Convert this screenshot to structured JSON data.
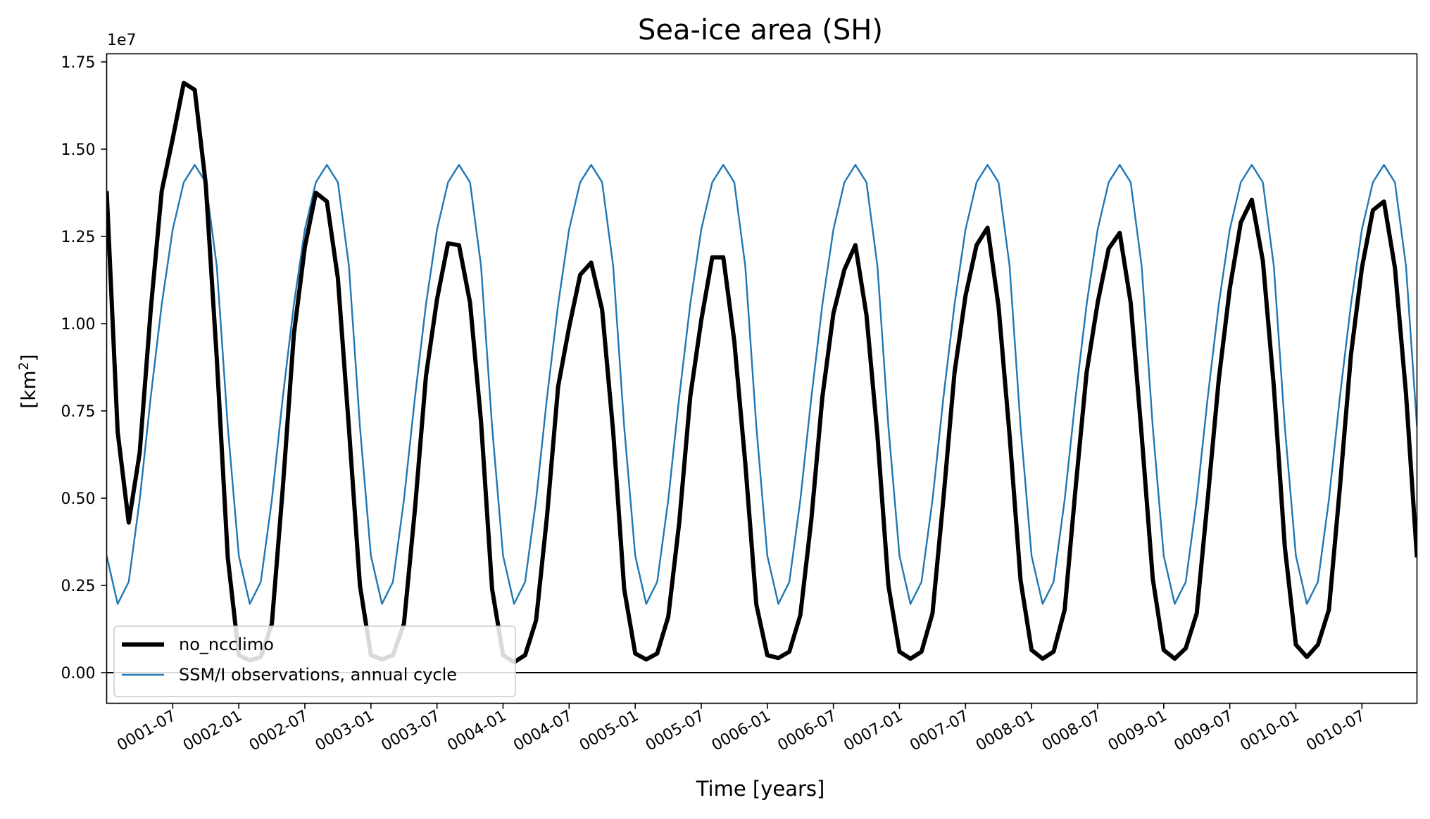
{
  "chart_data": {
    "type": "line",
    "title": "Sea-ice area (SH)",
    "xlabel": "Time [years]",
    "ylabel_main": "[km",
    "ylabel_sup": "2",
    "ylabel_end": "]",
    "y_offset_label": "1e7",
    "ylim": [
      -800000,
      17800000
    ],
    "xlim": [
      0,
      119
    ],
    "x_unit": "month index (0 = 0001-01)",
    "yticks": [
      0,
      2500000,
      5000000,
      7500000,
      10000000,
      12500000,
      15000000,
      17500000
    ],
    "ytick_labels": [
      "0.00",
      "0.25",
      "0.50",
      "0.75",
      "1.00",
      "1.25",
      "1.50",
      "1.75"
    ],
    "xticks": [
      6,
      12,
      18,
      24,
      30,
      36,
      42,
      48,
      54,
      60,
      66,
      72,
      78,
      84,
      90,
      96,
      102,
      108,
      114
    ],
    "xtick_labels": [
      "0001-07",
      "0002-01",
      "0002-07",
      "0003-01",
      "0003-07",
      "0004-01",
      "0004-07",
      "0005-01",
      "0005-07",
      "0006-01",
      "0006-07",
      "0007-01",
      "0007-07",
      "0008-01",
      "0008-07",
      "0009-01",
      "0009-07",
      "0010-01",
      "0010-07"
    ],
    "zero_line": true,
    "grid": false,
    "legend_position": "lower-left",
    "series": [
      {
        "name": "no_ncclimo",
        "color": "#000000",
        "values": [
          13800000,
          6900000,
          4300000,
          6300000,
          10400000,
          13800000,
          15300000,
          16900000,
          16700000,
          14000000,
          9000000,
          3300000,
          500000,
          350000,
          450000,
          1400000,
          5300000,
          9700000,
          12200000,
          13750000,
          13500000,
          11300000,
          7000000,
          2500000,
          500000,
          380000,
          500000,
          1400000,
          4700000,
          8500000,
          10700000,
          12300000,
          12250000,
          10600000,
          7200000,
          2400000,
          500000,
          300000,
          500000,
          1500000,
          4500000,
          8200000,
          9900000,
          11400000,
          11750000,
          10400000,
          6900000,
          2400000,
          550000,
          380000,
          550000,
          1600000,
          4300000,
          7900000,
          10100000,
          11900000,
          11900000,
          9500000,
          6000000,
          1950000,
          500000,
          420000,
          600000,
          1650000,
          4400000,
          7900000,
          10300000,
          11550000,
          12250000,
          10250000,
          6800000,
          2500000,
          600000,
          400000,
          600000,
          1700000,
          5000000,
          8600000,
          10800000,
          12250000,
          12750000,
          10500000,
          6800000,
          2650000,
          650000,
          400000,
          600000,
          1800000,
          5300000,
          8600000,
          10600000,
          12150000,
          12600000,
          10600000,
          6800000,
          2700000,
          650000,
          400000,
          700000,
          1700000,
          5000000,
          8400000,
          11000000,
          12900000,
          13550000,
          11800000,
          8200000,
          3600000,
          800000,
          450000,
          800000,
          1800000,
          5300000,
          9100000,
          11600000,
          13250000,
          13500000,
          11600000,
          8000000,
          3300000
        ]
      },
      {
        "name": "SSM/I observations, annual cycle",
        "color": "#1f77b4",
        "climatology": [
          3350000,
          1970000,
          2600000,
          4950000,
          7900000,
          10550000,
          12700000,
          14050000,
          14550000,
          14050000,
          11650000,
          7050000
        ]
      }
    ]
  }
}
